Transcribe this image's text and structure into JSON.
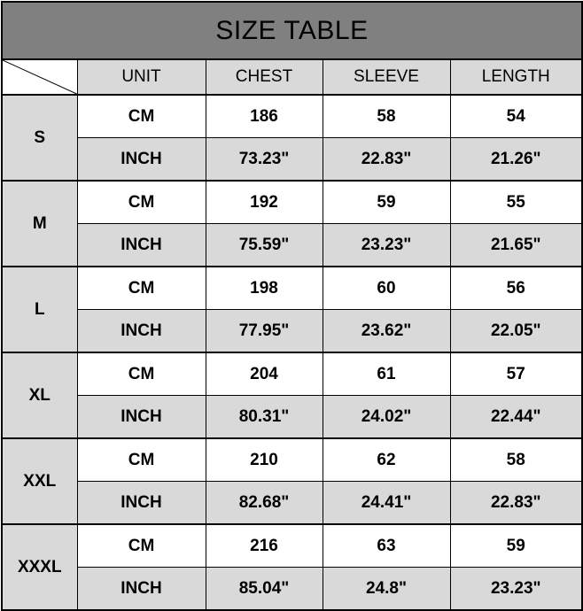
{
  "title": "SIZE TABLE",
  "headers": [
    "UNIT",
    "CHEST",
    "SLEEVE",
    "LENGTH"
  ],
  "rows": [
    {
      "size": "S",
      "cm": {
        "unit": "CM",
        "chest": "186",
        "sleeve": "58",
        "length": "54"
      },
      "inch": {
        "unit": "INCH",
        "chest": "73.23\"",
        "sleeve": "22.83\"",
        "length": "21.26\""
      }
    },
    {
      "size": "M",
      "cm": {
        "unit": "CM",
        "chest": "192",
        "sleeve": "59",
        "length": "55"
      },
      "inch": {
        "unit": "INCH",
        "chest": "75.59\"",
        "sleeve": "23.23\"",
        "length": "21.65\""
      }
    },
    {
      "size": "L",
      "cm": {
        "unit": "CM",
        "chest": "198",
        "sleeve": "60",
        "length": "56"
      },
      "inch": {
        "unit": "INCH",
        "chest": "77.95\"",
        "sleeve": "23.62\"",
        "length": "22.05\""
      }
    },
    {
      "size": "XL",
      "cm": {
        "unit": "CM",
        "chest": "204",
        "sleeve": "61",
        "length": "57"
      },
      "inch": {
        "unit": "INCH",
        "chest": "80.31\"",
        "sleeve": "24.02\"",
        "length": "22.44\""
      }
    },
    {
      "size": "XXL",
      "cm": {
        "unit": "CM",
        "chest": "210",
        "sleeve": "62",
        "length": "58"
      },
      "inch": {
        "unit": "INCH",
        "chest": "82.68\"",
        "sleeve": "24.41\"",
        "length": "22.83\""
      }
    },
    {
      "size": "XXXL",
      "cm": {
        "unit": "CM",
        "chest": "216",
        "sleeve": "63",
        "length": "59"
      },
      "inch": {
        "unit": "INCH",
        "chest": "85.04\"",
        "sleeve": "24.8\"",
        "length": "23.23\""
      }
    }
  ],
  "colors": {
    "title_bg": "#808080",
    "shaded_bg": "#d9d9d9"
  }
}
